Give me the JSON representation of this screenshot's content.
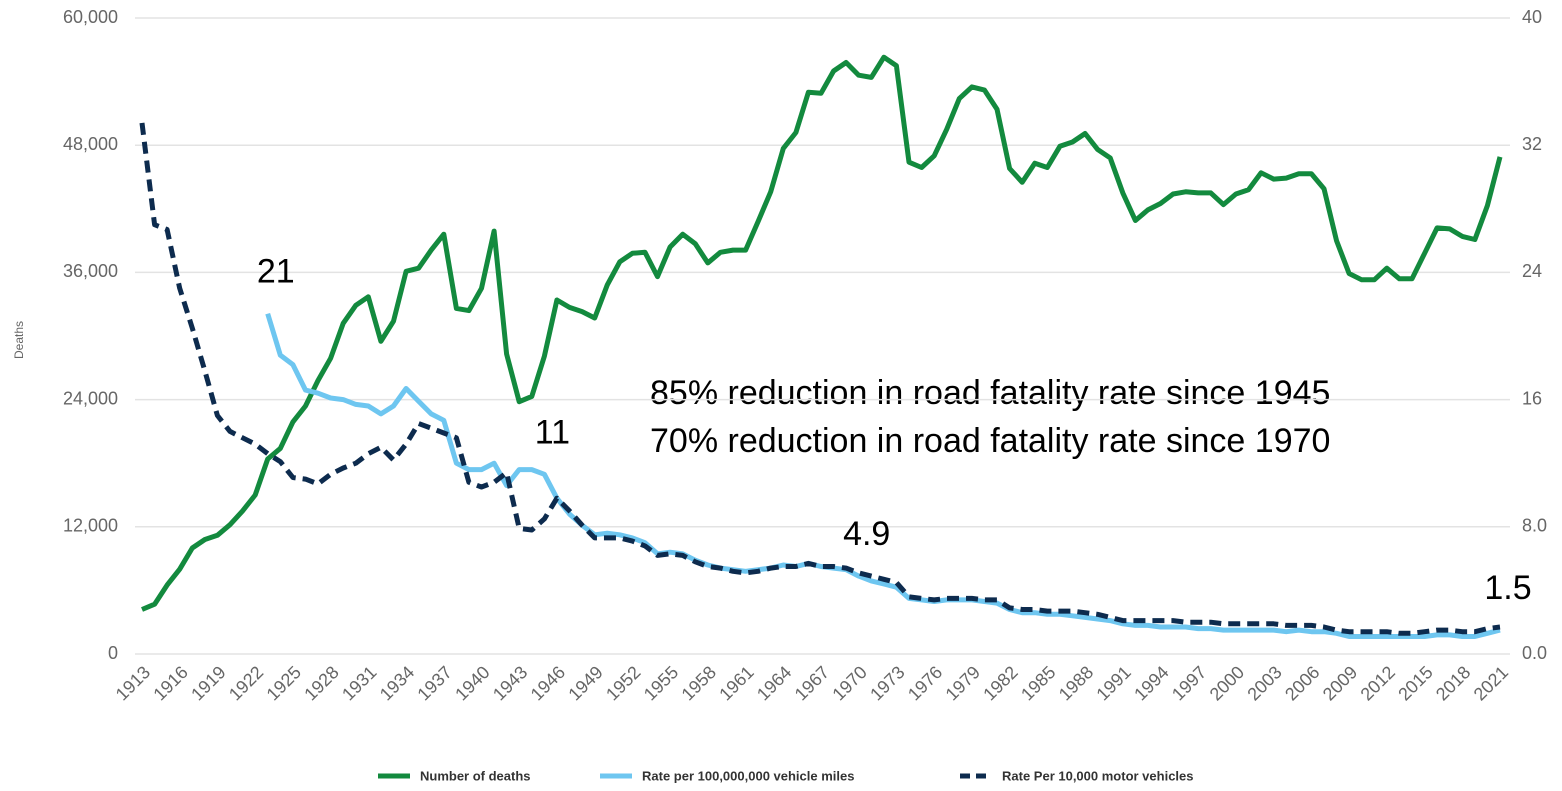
{
  "chart_data": {
    "type": "line",
    "y_label": "Deaths",
    "annotations": [
      "85% reduction in road fatality rate since 1945",
      "70% reduction in road fatality rate since 1970"
    ],
    "x": [
      1913,
      1914,
      1915,
      1916,
      1917,
      1918,
      1919,
      1920,
      1921,
      1922,
      1923,
      1924,
      1925,
      1926,
      1927,
      1928,
      1929,
      1930,
      1931,
      1932,
      1933,
      1934,
      1935,
      1936,
      1937,
      1938,
      1939,
      1940,
      1941,
      1942,
      1943,
      1944,
      1945,
      1946,
      1947,
      1948,
      1949,
      1950,
      1951,
      1952,
      1953,
      1954,
      1955,
      1956,
      1957,
      1958,
      1959,
      1960,
      1961,
      1962,
      1963,
      1964,
      1965,
      1966,
      1967,
      1968,
      1969,
      1970,
      1971,
      1972,
      1973,
      1974,
      1975,
      1976,
      1977,
      1978,
      1979,
      1980,
      1981,
      1982,
      1983,
      1984,
      1985,
      1986,
      1987,
      1988,
      1989,
      1990,
      1991,
      1992,
      1993,
      1994,
      1995,
      1996,
      1997,
      1998,
      1999,
      2000,
      2001,
      2002,
      2003,
      2004,
      2005,
      2006,
      2007,
      2008,
      2009,
      2010,
      2011,
      2012,
      2013,
      2014,
      2015,
      2016,
      2017,
      2018,
      2019,
      2020,
      2021
    ],
    "xlim": [
      1913,
      2021
    ],
    "xticks": [
      1913,
      1916,
      1919,
      1922,
      1925,
      1928,
      1931,
      1934,
      1937,
      1940,
      1943,
      1946,
      1949,
      1952,
      1955,
      1958,
      1961,
      1964,
      1967,
      1970,
      1973,
      1976,
      1979,
      1982,
      1985,
      1988,
      1991,
      1994,
      1997,
      2000,
      2003,
      2006,
      2009,
      2012,
      2015,
      2018,
      2021
    ],
    "ylim": [
      0,
      60000
    ],
    "yticks": [
      0,
      {
        "value": 12000,
        "label": "12,000"
      },
      {
        "value": 24000,
        "label": "24,000"
      },
      {
        "value": 36000,
        "label": "36,000"
      },
      {
        "value": 48000,
        "label": "48,000"
      },
      {
        "value": 60000,
        "label": "60,000"
      }
    ],
    "y2lim": [
      0,
      40
    ],
    "y2ticks": [
      {
        "value": 0,
        "label": "0.0"
      },
      {
        "value": 8,
        "label": "8.0"
      },
      16,
      24,
      32,
      40
    ],
    "grid": true,
    "legend": "bottom",
    "series": [
      {
        "name": "Number of deaths",
        "color": "#138a3e",
        "values": [
          4200,
          4700,
          6500,
          8000,
          10000,
          10800,
          11200,
          12200,
          13500,
          15000,
          18400,
          19400,
          21900,
          23400,
          25800,
          27900,
          31200,
          32900,
          33700,
          29500,
          31400,
          36100,
          36400,
          38100,
          39600,
          32600,
          32400,
          34500,
          39900,
          28300,
          23800,
          24300,
          28100,
          33400,
          32700,
          32300,
          31700,
          34800,
          37000,
          37800,
          37900,
          35600,
          38400,
          39600,
          38700,
          36900,
          37900,
          38100,
          38100,
          40800,
          43600,
          47700,
          49200,
          53000,
          52900,
          55000,
          55800,
          54600,
          54400,
          56300,
          55500,
          46400,
          45900,
          47000,
          49500,
          52400,
          53500,
          53200,
          51400,
          45800,
          44500,
          46300,
          45900,
          47900,
          48300,
          49100,
          47600,
          46800,
          43500,
          40900,
          41900,
          42500,
          43400,
          43600,
          43500,
          43500,
          42400,
          43400,
          43800,
          45400,
          44800,
          44900,
          45300,
          45300,
          43900,
          39000,
          35900,
          35300,
          35300,
          36400,
          35400,
          35400,
          37800,
          40200,
          40100,
          39400,
          39100,
          42300,
          46900
        ]
      },
      {
        "name": "Rate per 100,000,000 vehicle miles",
        "color": "#6ec6f0",
        "axis": "y2",
        "values": [
          null,
          null,
          null,
          null,
          null,
          null,
          null,
          null,
          null,
          null,
          21.4,
          18.8,
          18.2,
          16.6,
          16.4,
          16.1,
          16.0,
          15.7,
          15.6,
          15.1,
          15.6,
          16.7,
          15.9,
          15.1,
          14.7,
          12.0,
          11.6,
          11.6,
          12.0,
          10.6,
          11.6,
          11.6,
          11.3,
          9.8,
          8.8,
          8.1,
          7.5,
          7.6,
          7.5,
          7.3,
          7.0,
          6.3,
          6.4,
          6.3,
          5.9,
          5.6,
          5.4,
          5.3,
          5.2,
          5.3,
          5.4,
          5.6,
          5.5,
          5.7,
          5.5,
          5.4,
          5.3,
          4.9,
          4.6,
          4.4,
          4.2,
          3.5,
          3.4,
          3.3,
          3.4,
          3.4,
          3.4,
          3.3,
          3.2,
          2.8,
          2.6,
          2.6,
          2.5,
          2.5,
          2.4,
          2.3,
          2.2,
          2.1,
          1.9,
          1.8,
          1.8,
          1.7,
          1.7,
          1.7,
          1.6,
          1.6,
          1.5,
          1.5,
          1.5,
          1.5,
          1.5,
          1.4,
          1.5,
          1.4,
          1.4,
          1.3,
          1.1,
          1.1,
          1.1,
          1.1,
          1.1,
          1.1,
          1.1,
          1.2,
          1.2,
          1.1,
          1.1,
          1.3,
          1.5
        ],
        "value_labels": [
          null,
          null,
          null,
          null,
          null,
          null,
          null,
          null,
          null,
          null,
          "21",
          null,
          null,
          null,
          null,
          null,
          null,
          null,
          null,
          null,
          null,
          null,
          null,
          null,
          null,
          null,
          null,
          null,
          null,
          null,
          null,
          null,
          "11",
          null,
          null,
          null,
          null,
          null,
          null,
          null,
          null,
          null,
          null,
          null,
          null,
          null,
          null,
          null,
          null,
          null,
          null,
          null,
          null,
          null,
          null,
          null,
          null,
          "4.9",
          null,
          null,
          null,
          null,
          null,
          null,
          null,
          null,
          null,
          null,
          null,
          null,
          null,
          null,
          null,
          null,
          null,
          null,
          null,
          null,
          null,
          null,
          null,
          null,
          null,
          null,
          null,
          null,
          null,
          null,
          null,
          null,
          null,
          null,
          null,
          null,
          null,
          null,
          null,
          null,
          null,
          null,
          null,
          null,
          null,
          null,
          null,
          null,
          null,
          null,
          "1.5"
        ]
      },
      {
        "name": "Rate Per 10,000 motor vehicles",
        "color": "#0d2b4e",
        "axis": "y2",
        "dashed": true,
        "values": [
          33.4,
          27.0,
          26.7,
          23.0,
          20.5,
          17.8,
          15.0,
          14.0,
          13.6,
          13.2,
          12.6,
          12.1,
          11.1,
          11.0,
          10.7,
          11.3,
          11.7,
          12.0,
          12.6,
          13.0,
          12.2,
          13.2,
          14.5,
          14.2,
          13.9,
          13.6,
          10.8,
          10.5,
          10.8,
          11.4,
          7.9,
          7.8,
          8.5,
          9.8,
          9.0,
          8.1,
          7.3,
          7.3,
          7.3,
          7.1,
          6.8,
          6.2,
          6.3,
          6.2,
          5.8,
          5.5,
          5.4,
          5.2,
          5.1,
          5.2,
          5.4,
          5.5,
          5.5,
          5.7,
          5.5,
          5.5,
          5.4,
          5.1,
          4.9,
          4.7,
          4.5,
          3.6,
          3.5,
          3.4,
          3.5,
          3.5,
          3.5,
          3.4,
          3.4,
          2.9,
          2.8,
          2.8,
          2.7,
          2.7,
          2.7,
          2.6,
          2.5,
          2.3,
          2.1,
          2.1,
          2.1,
          2.1,
          2.1,
          2.0,
          2.0,
          2.0,
          1.9,
          1.9,
          1.9,
          1.9,
          1.9,
          1.8,
          1.8,
          1.8,
          1.7,
          1.5,
          1.4,
          1.4,
          1.4,
          1.4,
          1.3,
          1.3,
          1.4,
          1.5,
          1.5,
          1.4,
          1.4,
          1.6,
          1.7
        ]
      }
    ]
  }
}
